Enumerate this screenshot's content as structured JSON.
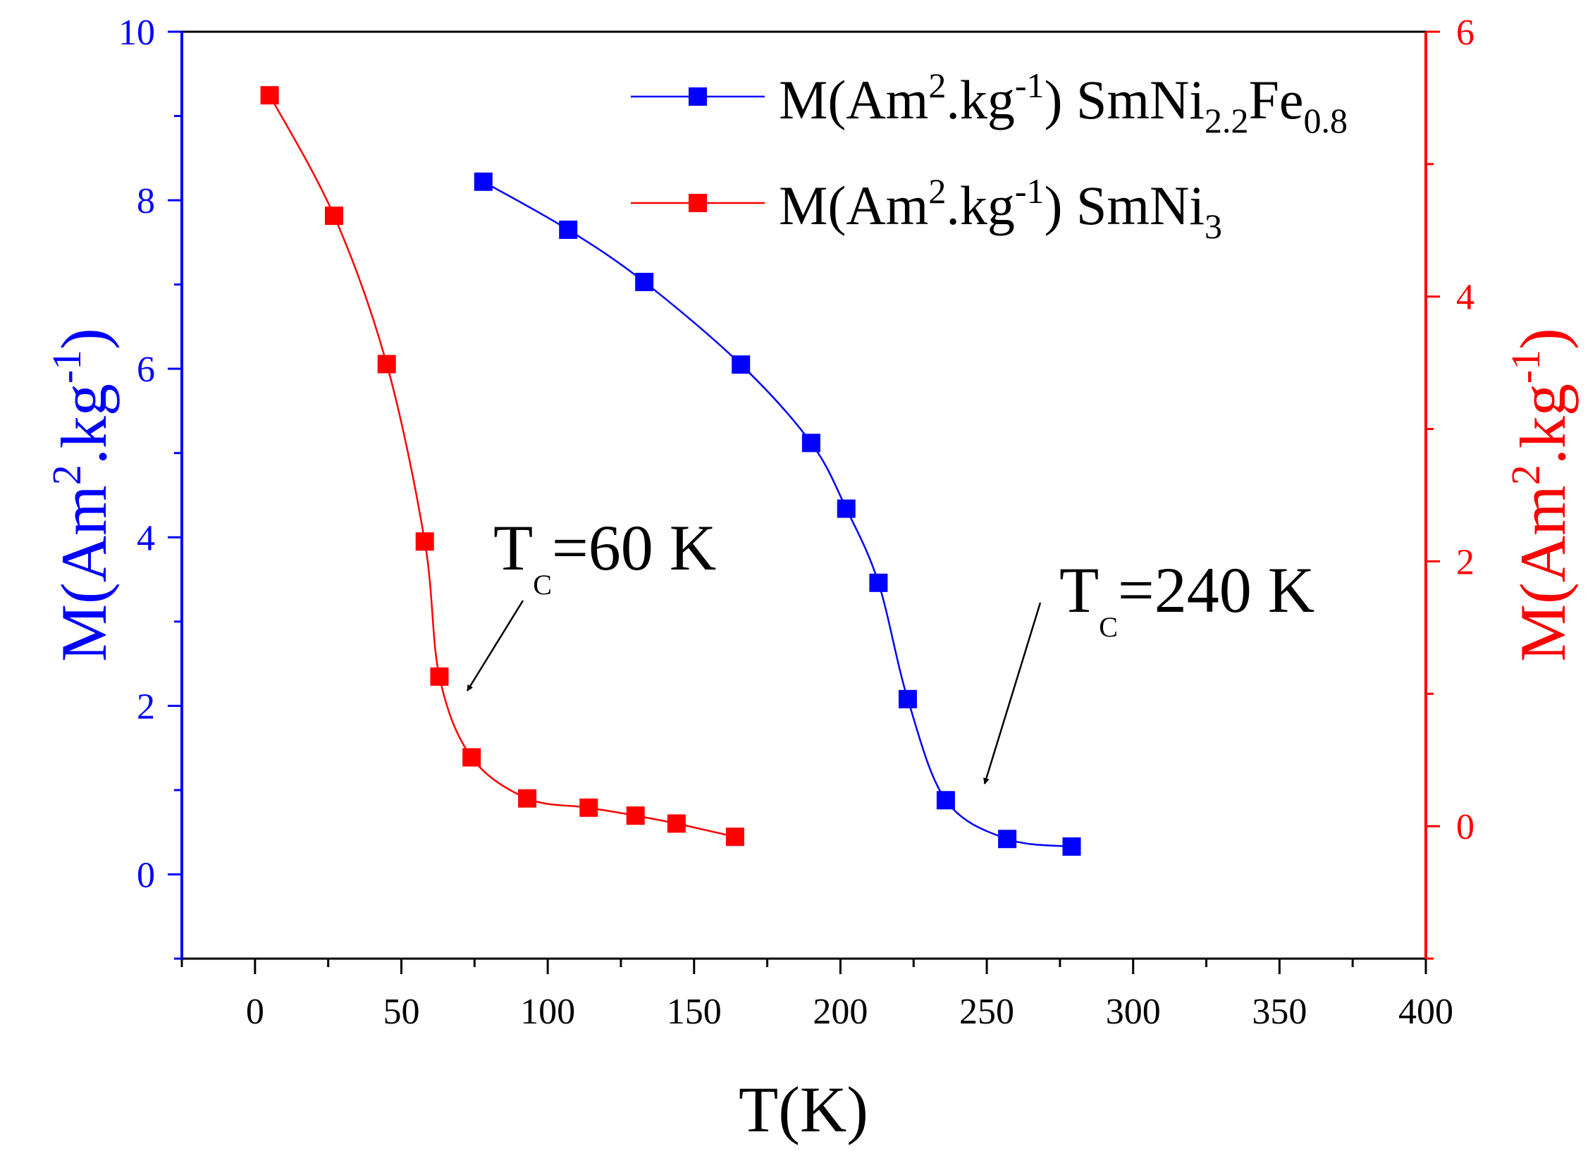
{
  "chart_data": {
    "type": "line",
    "x_axis": {
      "label": "T(K)",
      "range": [
        -25,
        400
      ],
      "major_ticks": [
        0,
        50,
        100,
        150,
        200,
        250,
        300,
        350,
        400
      ],
      "minor_ticks": [
        -25,
        25,
        75,
        125,
        175,
        225,
        275,
        325,
        375
      ]
    },
    "y_left_axis": {
      "label_main": "M(Am",
      "label_sup1": "2",
      "label_mid": ".kg",
      "label_sup2": "-1",
      "label_end": ")",
      "range": [
        -1,
        10
      ],
      "major_ticks": [
        0,
        2,
        4,
        6,
        8,
        10
      ],
      "minor_ticks": [
        -1,
        1,
        3,
        5,
        7,
        9
      ],
      "color": "#0000ff"
    },
    "y_right_axis": {
      "label_main": "M(Am",
      "label_sup1": "2",
      "label_mid": ".kg",
      "label_sup2": "-1",
      "label_end": ")",
      "range": [
        -1,
        6
      ],
      "major_ticks": [
        0,
        2,
        4,
        6
      ],
      "minor_ticks": [
        -1,
        1,
        3,
        5
      ],
      "color": "#ff0000"
    },
    "series": [
      {
        "name": "M(Am2.kg-1) SmNi2.2Fe0.8",
        "legend_parts": {
          "main": "M(Am",
          "sup1": "2",
          "mid": ".kg",
          "sup2": "-1",
          "after": ") SmNi",
          "sub1": "2.2",
          "fe": "Fe",
          "sub2": "0.8"
        },
        "axis": "left",
        "color": "#0000ff",
        "x": [
          78,
          107,
          133,
          166,
          190,
          202,
          213,
          223,
          236,
          257,
          279
        ],
        "y": [
          8.22,
          7.65,
          7.03,
          6.05,
          5.12,
          4.34,
          3.46,
          2.08,
          0.88,
          0.42,
          0.33
        ]
      },
      {
        "name": "M(Am2.kg-1) SmNi3",
        "legend_parts": {
          "main": "M(Am",
          "sup1": "2",
          "mid": ".kg",
          "sup2": "-1",
          "after": ") SmNi",
          "sub1": "3"
        },
        "axis": "right",
        "color": "#ff0000",
        "x": [
          5,
          27,
          45,
          58,
          63,
          74,
          93,
          114,
          130,
          144,
          164
        ],
        "y": [
          5.52,
          4.61,
          3.49,
          2.15,
          1.13,
          0.52,
          0.21,
          0.14,
          0.08,
          0.02,
          -0.08
        ]
      }
    ],
    "annotations": [
      {
        "id": "tc60",
        "prefix": "T",
        "sub": "C",
        "text": "=60 K",
        "points_to_x": 72,
        "series": "M(Am2.kg-1) SmNi3"
      },
      {
        "id": "tc240",
        "prefix": "T",
        "sub": "C",
        "text": "=240 K",
        "points_to_x": 248,
        "series": "M(Am2.kg-1) SmNi2.2Fe0.8"
      }
    ]
  }
}
